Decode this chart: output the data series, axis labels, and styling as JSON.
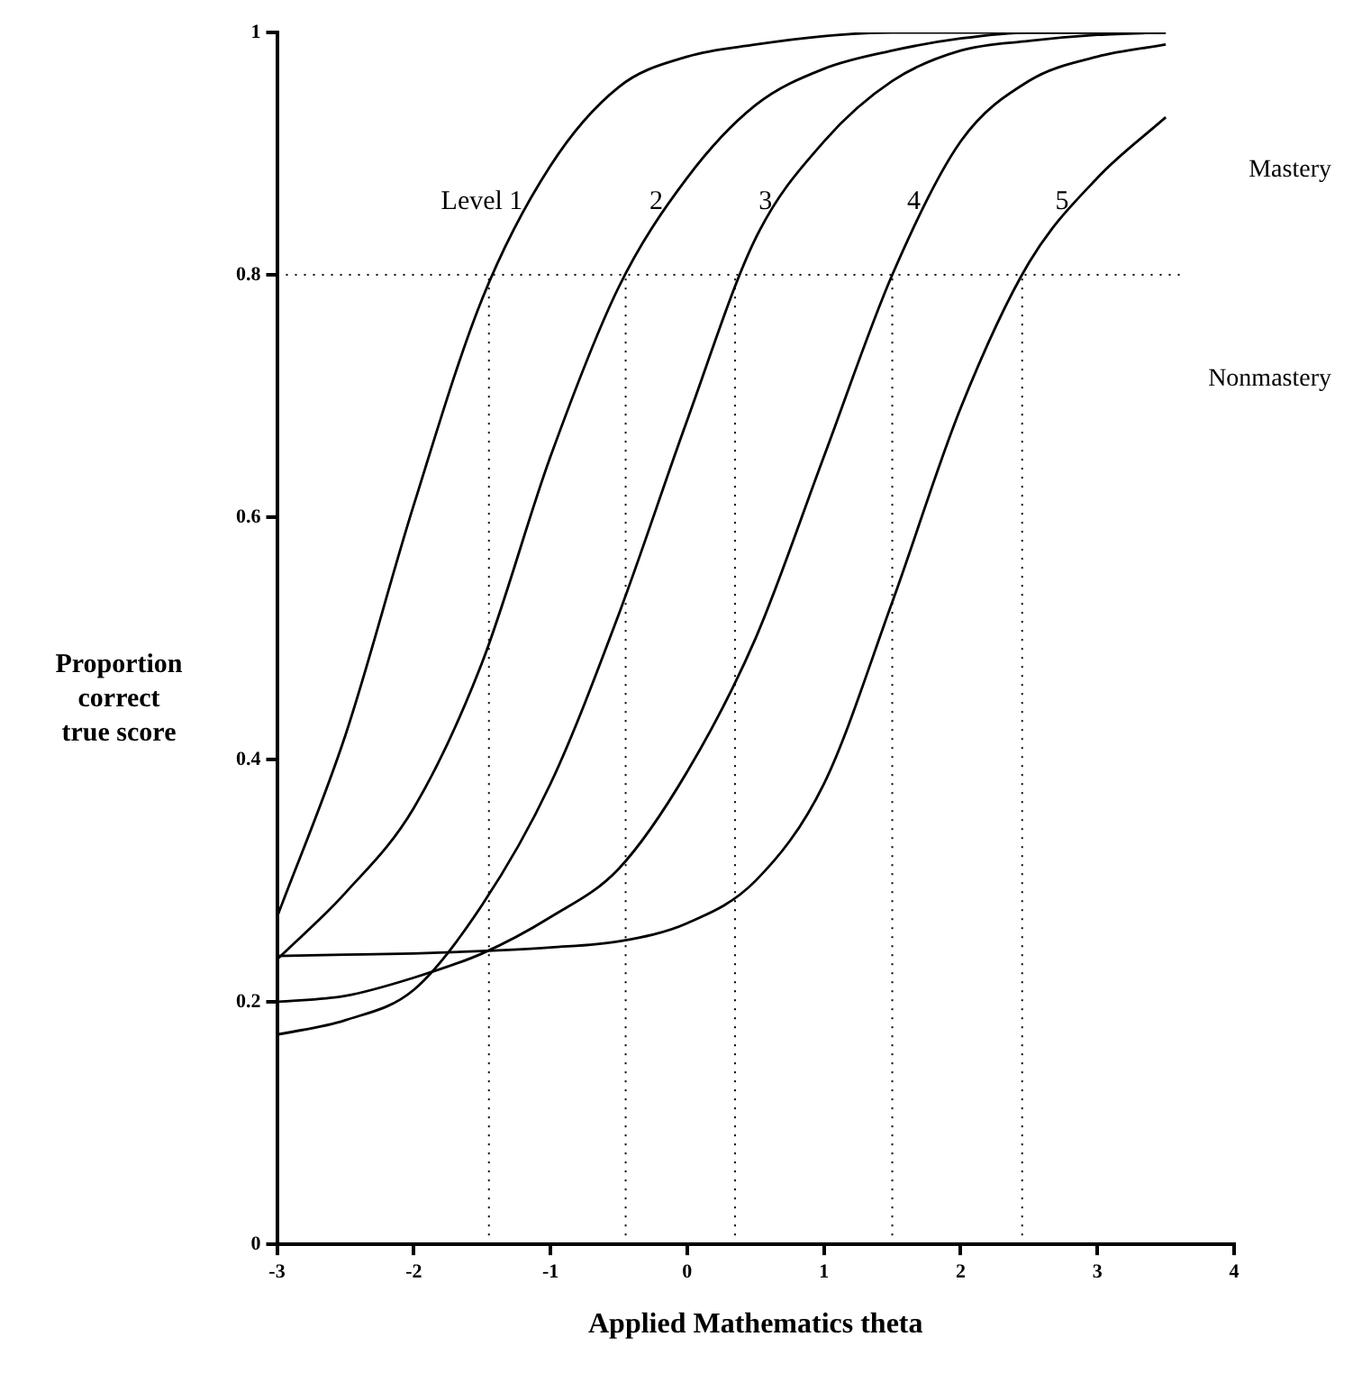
{
  "chart_data": {
    "type": "line",
    "xlabel": "Applied Mathematics theta",
    "ylabel": "Proportion\ncorrect\ntrue score",
    "x": [
      -3,
      -2.5,
      -2,
      -1.5,
      -1,
      -0.5,
      0,
      0.5,
      1,
      1.5,
      2,
      2.5,
      3,
      3.5
    ],
    "series": [
      {
        "name": "Level 1",
        "color": "#000000",
        "values": [
          0.27,
          0.42,
          0.61,
          0.78,
          0.89,
          0.955,
          0.98,
          0.99,
          0.997,
          1,
          1,
          1,
          1,
          1
        ]
      },
      {
        "name": "2",
        "color": "#000000",
        "values": [
          0.235,
          0.29,
          0.36,
          0.48,
          0.65,
          0.79,
          0.88,
          0.94,
          0.97,
          0.985,
          0.995,
          1,
          1,
          1
        ]
      },
      {
        "name": "3",
        "color": "#000000",
        "values": [
          0.173,
          0.185,
          0.21,
          0.28,
          0.38,
          0.52,
          0.68,
          0.83,
          0.91,
          0.96,
          0.985,
          0.993,
          0.998,
          1
        ]
      },
      {
        "name": "4",
        "color": "#000000",
        "values": [
          0.2,
          0.205,
          0.22,
          0.24,
          0.27,
          0.31,
          0.39,
          0.5,
          0.65,
          0.8,
          0.91,
          0.96,
          0.98,
          0.99
        ]
      },
      {
        "name": "5",
        "color": "#000000",
        "values": [
          0.238,
          0.239,
          0.24,
          0.242,
          0.245,
          0.25,
          0.265,
          0.3,
          0.38,
          0.53,
          0.69,
          0.81,
          0.88,
          0.93
        ]
      }
    ],
    "xlim": [
      -3,
      4
    ],
    "xticks": [
      -3,
      -2,
      -1,
      0,
      1,
      2,
      3,
      4
    ],
    "ylim": [
      0,
      1
    ],
    "yticks": [
      0,
      0.2,
      0.4,
      0.6,
      0.8,
      1
    ],
    "ref_lines": [
      {
        "axis": "y",
        "value": 0.8,
        "line_style": "dotted"
      },
      {
        "axis": "x",
        "value": -1.45,
        "line_style": "dotted"
      },
      {
        "axis": "x",
        "value": -0.45,
        "line_style": "dotted"
      },
      {
        "axis": "x",
        "value": 0.35,
        "line_style": "dotted"
      },
      {
        "axis": "x",
        "value": 1.5,
        "line_style": "dotted"
      },
      {
        "axis": "x",
        "value": 2.45,
        "line_style": "dotted"
      }
    ],
    "annotations": [
      "Mastery",
      "Nonmastery"
    ],
    "grid": false,
    "marker": "none",
    "line_style": "solid"
  }
}
